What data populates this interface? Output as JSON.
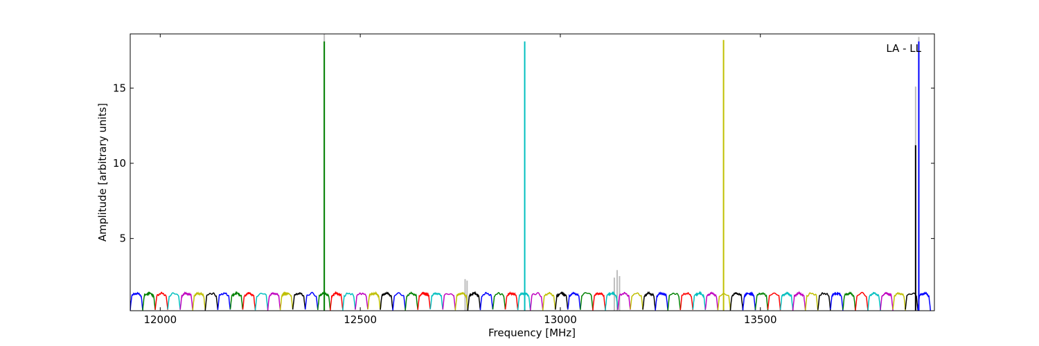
{
  "chart_data": {
    "type": "line",
    "title": "",
    "xlabel": "Frequency [MHz]",
    "ylabel": "Amplitude [arbitrary units]",
    "xlim": [
      11925,
      13935
    ],
    "ylim": [
      0.2,
      18.6
    ],
    "xticks": [
      12000,
      12500,
      13000,
      13500
    ],
    "xtick_labels": [
      "12000",
      "12500",
      "13000",
      "13500"
    ],
    "yticks": [
      5,
      10,
      15
    ],
    "ytick_labels": [
      "5",
      "10",
      "15"
    ],
    "grid": false,
    "legend": "none",
    "annotation": "LA - LL",
    "annotation_position": "top-right",
    "band": {
      "start_mhz": 11925,
      "channel_width_mhz": 31.25,
      "channel_count": 64,
      "ripple_min": 0.25,
      "ripple_max": 1.35,
      "color_cycle": [
        "#0000ff",
        "#008000",
        "#ff0000",
        "#00bfbf",
        "#bf00bf",
        "#bfbf00",
        "#000000"
      ]
    },
    "spikes": [
      {
        "x": 12410,
        "y": 18.1,
        "color": "#008000"
      },
      {
        "x": 12911,
        "y": 18.1,
        "color": "#00bfbf"
      },
      {
        "x": 13408,
        "y": 18.2,
        "color": "#bfbf00"
      },
      {
        "x": 13888,
        "y": 11.2,
        "color": "#000000"
      },
      {
        "x": 13896,
        "y": 18.1,
        "color": "#0000ff"
      }
    ],
    "gray_peaks": [
      {
        "x": 12410,
        "y": 18.6
      },
      {
        "x": 12762,
        "y": 2.3
      },
      {
        "x": 12767,
        "y": 2.2
      },
      {
        "x": 13135,
        "y": 2.4
      },
      {
        "x": 13142,
        "y": 2.9
      },
      {
        "x": 13148,
        "y": 2.5
      },
      {
        "x": 13888,
        "y": 15.1
      },
      {
        "x": 13896,
        "y": 18.4
      }
    ]
  }
}
